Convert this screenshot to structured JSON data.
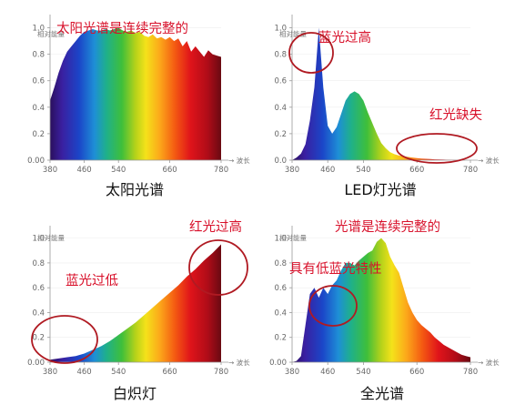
{
  "chart_data": [
    {
      "type": "area",
      "title": "太阳光谱",
      "note": "太阳光谱是连续完整的",
      "ylabel": "相对能量",
      "xlabel": "波长",
      "xlim": [
        380,
        780
      ],
      "ylim": [
        0,
        1.1
      ],
      "xticks": [
        "380",
        "460",
        "540",
        "660",
        "780"
      ],
      "yticks": [
        "0.00",
        "0.2",
        "0.4",
        "0.6",
        "0.8",
        "1.0"
      ],
      "x": [
        380,
        390,
        400,
        410,
        420,
        430,
        440,
        450,
        460,
        470,
        480,
        490,
        500,
        510,
        520,
        530,
        540,
        550,
        560,
        570,
        580,
        590,
        600,
        610,
        620,
        630,
        640,
        650,
        660,
        670,
        680,
        690,
        700,
        710,
        720,
        730,
        740,
        750,
        760,
        770,
        780
      ],
      "values": [
        0.45,
        0.55,
        0.66,
        0.75,
        0.82,
        0.86,
        0.9,
        0.94,
        0.97,
        0.98,
        0.99,
        0.98,
        0.98,
        0.99,
        0.98,
        0.99,
        1.0,
        0.98,
        0.97,
        0.98,
        0.96,
        0.97,
        0.94,
        0.93,
        0.95,
        0.92,
        0.93,
        0.91,
        0.93,
        0.9,
        0.92,
        0.86,
        0.9,
        0.82,
        0.86,
        0.82,
        0.78,
        0.83,
        0.8,
        0.79,
        0.78
      ]
    },
    {
      "type": "area",
      "title": "LED灯光谱",
      "note": "蓝光过高",
      "note2": "红光缺失",
      "ylabel": "相对能量",
      "xlabel": "波长",
      "xlim": [
        380,
        780
      ],
      "ylim": [
        0,
        1.1
      ],
      "xticks": [
        "380",
        "460",
        "540",
        "660",
        "780"
      ],
      "yticks": [
        "0.0",
        "0.2",
        "0.4",
        "0.6",
        "0.8",
        "1.0"
      ],
      "x": [
        380,
        390,
        400,
        410,
        420,
        430,
        440,
        450,
        460,
        470,
        480,
        490,
        500,
        510,
        520,
        530,
        540,
        550,
        560,
        570,
        580,
        590,
        600,
        610,
        620,
        630,
        640,
        650,
        660,
        670,
        680,
        690,
        700,
        710,
        720,
        730,
        740,
        750,
        760,
        770,
        780
      ],
      "values": [
        0.0,
        0.02,
        0.05,
        0.12,
        0.3,
        0.55,
        1.0,
        0.55,
        0.26,
        0.2,
        0.25,
        0.35,
        0.45,
        0.5,
        0.52,
        0.5,
        0.45,
        0.36,
        0.28,
        0.2,
        0.13,
        0.09,
        0.06,
        0.045,
        0.035,
        0.03,
        0.025,
        0.02,
        0.015,
        0.012,
        0.01,
        0.008,
        0.006,
        0.005,
        0.004,
        0.003,
        0.002,
        0.002,
        0.001,
        0.001,
        0.0
      ]
    },
    {
      "type": "area",
      "title": "白炽灯",
      "note": "蓝光过低",
      "note2": "红光过高",
      "ylabel": "相对能量",
      "xlabel": "波长",
      "xlim": [
        380,
        780
      ],
      "ylim": [
        0,
        1.1
      ],
      "xticks": [
        "380",
        "460",
        "540",
        "660",
        "780"
      ],
      "yticks": [
        "0.00",
        "0.2",
        "0.4",
        "0.6",
        "0.8",
        "1.0"
      ],
      "x": [
        380,
        400,
        420,
        440,
        460,
        480,
        500,
        520,
        540,
        560,
        580,
        600,
        620,
        640,
        660,
        680,
        700,
        720,
        740,
        760,
        780
      ],
      "values": [
        0.02,
        0.03,
        0.04,
        0.05,
        0.07,
        0.1,
        0.13,
        0.17,
        0.22,
        0.27,
        0.32,
        0.38,
        0.44,
        0.5,
        0.56,
        0.62,
        0.69,
        0.75,
        0.82,
        0.88,
        0.95
      ]
    },
    {
      "type": "area",
      "title": "全光谱",
      "note": "光谱是连续完整的",
      "note2": "具有低蓝光特性",
      "ylabel": "相对能量",
      "xlabel": "波长",
      "xlim": [
        380,
        780
      ],
      "ylim": [
        0,
        1.1
      ],
      "xticks": [
        "380",
        "460",
        "540",
        "660",
        "780"
      ],
      "yticks": [
        "0.00",
        "0.2",
        "0.4",
        "0.6",
        "0.8",
        "1.0"
      ],
      "x": [
        380,
        390,
        400,
        410,
        420,
        430,
        440,
        450,
        460,
        470,
        480,
        490,
        500,
        510,
        520,
        530,
        540,
        550,
        560,
        570,
        580,
        590,
        600,
        610,
        620,
        630,
        640,
        650,
        660,
        670,
        680,
        690,
        700,
        710,
        720,
        730,
        740,
        750,
        760,
        770,
        780
      ],
      "values": [
        0.0,
        0.01,
        0.05,
        0.3,
        0.55,
        0.6,
        0.52,
        0.6,
        0.55,
        0.62,
        0.66,
        0.74,
        0.8,
        0.8,
        0.78,
        0.82,
        0.85,
        0.88,
        0.9,
        0.97,
        1.0,
        0.96,
        0.85,
        0.78,
        0.72,
        0.6,
        0.48,
        0.4,
        0.34,
        0.3,
        0.27,
        0.24,
        0.2,
        0.17,
        0.14,
        0.12,
        0.1,
        0.08,
        0.06,
        0.05,
        0.04
      ]
    }
  ]
}
